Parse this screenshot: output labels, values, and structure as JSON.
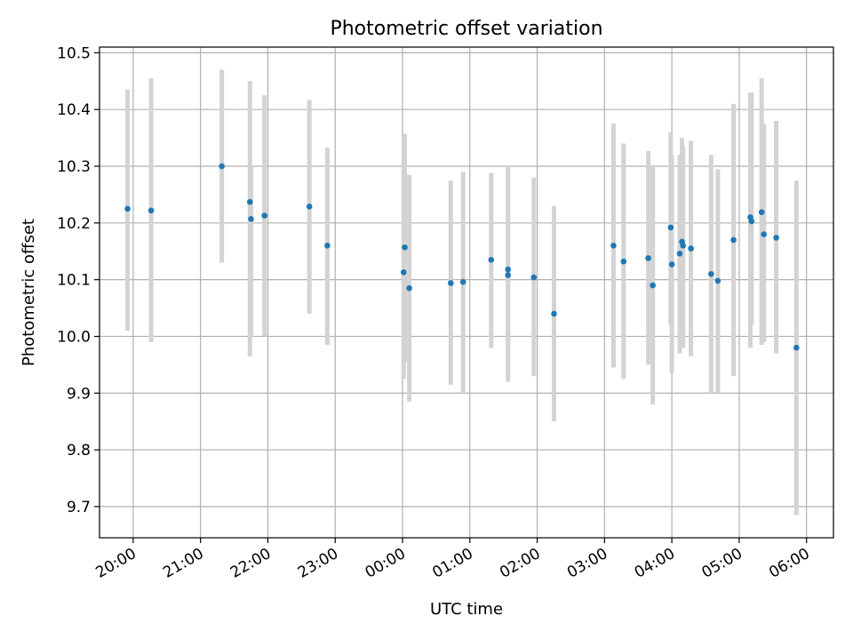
{
  "chart_data": {
    "type": "scatter",
    "title": "Photometric offset variation",
    "xlabel": "UTC time",
    "ylabel": "Photometric offset",
    "grid": true,
    "colors": {
      "point": "#1f77b4",
      "errorbar": "#d3d3d3",
      "grid": "#b0b0b0"
    },
    "xlim": [
      "19:30",
      "06:24"
    ],
    "ylim": [
      9.645,
      10.51
    ],
    "x_ticks": [
      "20:00",
      "21:00",
      "22:00",
      "23:00",
      "00:00",
      "01:00",
      "02:00",
      "03:00",
      "04:00",
      "05:00",
      "06:00"
    ],
    "y_ticks": [
      "9.7",
      "9.8",
      "9.9",
      "10.0",
      "10.1",
      "10.2",
      "10.3",
      "10.4",
      "10.5"
    ],
    "points": [
      {
        "x": "19:55",
        "y": 10.225,
        "ylo": 10.01,
        "yhi": 10.435
      },
      {
        "x": "20:16",
        "y": 10.222,
        "ylo": 9.99,
        "yhi": 10.455
      },
      {
        "x": "21:19",
        "y": 10.3,
        "ylo": 10.13,
        "yhi": 10.47
      },
      {
        "x": "21:44",
        "y": 10.237,
        "ylo": 9.965,
        "yhi": 10.45
      },
      {
        "x": "21:45",
        "y": 10.207,
        "ylo": 10.0,
        "yhi": 10.3
      },
      {
        "x": "21:57",
        "y": 10.213,
        "ylo": 10.0,
        "yhi": 10.425
      },
      {
        "x": "22:37",
        "y": 10.229,
        "ylo": 10.04,
        "yhi": 10.417
      },
      {
        "x": "22:53",
        "y": 10.16,
        "ylo": 9.985,
        "yhi": 10.333
      },
      {
        "x": "00:01",
        "y": 10.113,
        "ylo": 9.925,
        "yhi": 10.3
      },
      {
        "x": "00:02",
        "y": 10.157,
        "ylo": 9.955,
        "yhi": 10.357
      },
      {
        "x": "00:06",
        "y": 10.085,
        "ylo": 9.885,
        "yhi": 10.285
      },
      {
        "x": "00:43",
        "y": 10.094,
        "ylo": 9.915,
        "yhi": 10.275
      },
      {
        "x": "00:54",
        "y": 10.096,
        "ylo": 9.9,
        "yhi": 10.29
      },
      {
        "x": "01:19",
        "y": 10.135,
        "ylo": 9.98,
        "yhi": 10.288
      },
      {
        "x": "01:34",
        "y": 10.108,
        "ylo": 9.92,
        "yhi": 10.3
      },
      {
        "x": "01:34",
        "y": 10.118,
        "ylo": 9.95,
        "yhi": 10.295
      },
      {
        "x": "01:57",
        "y": 10.104,
        "ylo": 9.93,
        "yhi": 10.28
      },
      {
        "x": "02:15",
        "y": 10.04,
        "ylo": 9.85,
        "yhi": 10.23
      },
      {
        "x": "03:08",
        "y": 10.16,
        "ylo": 9.945,
        "yhi": 10.375
      },
      {
        "x": "03:17",
        "y": 10.132,
        "ylo": 9.925,
        "yhi": 10.34
      },
      {
        "x": "03:39",
        "y": 10.138,
        "ylo": 9.95,
        "yhi": 10.327
      },
      {
        "x": "03:43",
        "y": 10.09,
        "ylo": 9.88,
        "yhi": 10.3
      },
      {
        "x": "03:59",
        "y": 10.192,
        "ylo": 10.02,
        "yhi": 10.36
      },
      {
        "x": "04:00",
        "y": 10.127,
        "ylo": 9.935,
        "yhi": 10.32
      },
      {
        "x": "04:07",
        "y": 10.146,
        "ylo": 9.97,
        "yhi": 10.32
      },
      {
        "x": "04:09",
        "y": 10.167,
        "ylo": 9.98,
        "yhi": 10.35
      },
      {
        "x": "04:10",
        "y": 10.16,
        "ylo": 9.98,
        "yhi": 10.335
      },
      {
        "x": "04:17",
        "y": 10.155,
        "ylo": 9.965,
        "yhi": 10.345
      },
      {
        "x": "04:35",
        "y": 10.11,
        "ylo": 9.9,
        "yhi": 10.32
      },
      {
        "x": "04:41",
        "y": 10.098,
        "ylo": 9.9,
        "yhi": 10.295
      },
      {
        "x": "04:55",
        "y": 10.17,
        "ylo": 9.93,
        "yhi": 10.41
      },
      {
        "x": "05:10",
        "y": 10.21,
        "ylo": 9.98,
        "yhi": 10.43
      },
      {
        "x": "05:11",
        "y": 10.203,
        "ylo": 10.02,
        "yhi": 10.43
      },
      {
        "x": "05:20",
        "y": 10.219,
        "ylo": 9.985,
        "yhi": 10.455
      },
      {
        "x": "05:22",
        "y": 10.18,
        "ylo": 9.99,
        "yhi": 10.375
      },
      {
        "x": "05:33",
        "y": 10.174,
        "ylo": 9.97,
        "yhi": 10.38
      },
      {
        "x": "05:51",
        "y": 9.98,
        "ylo": 9.685,
        "yhi": 10.275
      }
    ]
  }
}
